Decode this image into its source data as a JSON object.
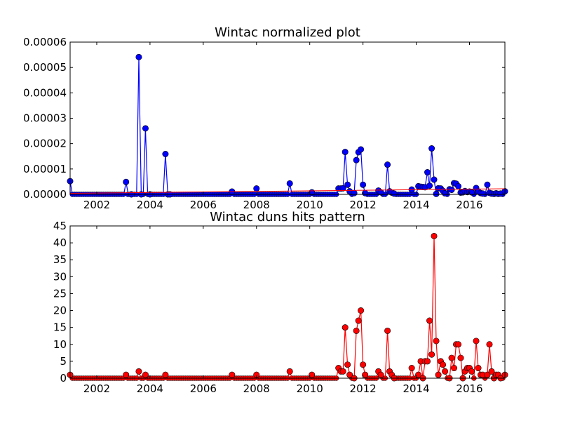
{
  "chart_data": [
    {
      "type": "line",
      "title": "Wintac normalized plot",
      "xlabel": "",
      "ylabel": "",
      "xlim": [
        2001.0,
        2017.33
      ],
      "ylim": [
        0,
        6e-05
      ],
      "xticks": [
        2002,
        2004,
        2006,
        2008,
        2010,
        2012,
        2014,
        2016
      ],
      "yticks": [
        "0.00000",
        "0.00001",
        "0.00002",
        "0.00003",
        "0.00004",
        "0.00005",
        "0.00006"
      ],
      "grid": false,
      "legend": "none",
      "colors": {
        "series": "#0000ff",
        "trend": "#ff0000"
      },
      "series": [
        {
          "x": [
            2001.0,
            2003.1,
            2003.3,
            2003.58,
            2003.67,
            2003.83,
            2004.0,
            2004.58,
            2004.67,
            2004.75,
            2007.08,
            2008.0,
            2009.25,
            2010.08,
            2011.08,
            2011.17,
            2011.25,
            2011.33,
            2011.42,
            2011.5,
            2011.67,
            2011.75,
            2011.83,
            2011.92,
            2012.0,
            2012.08,
            2012.58,
            2012.67,
            2012.92,
            2013.0,
            2013.08,
            2013.17,
            2013.83,
            2014.08,
            2014.17,
            2014.25,
            2014.33,
            2014.42,
            2014.5,
            2014.58,
            2014.67,
            2014.75,
            2014.83,
            2014.92,
            2015.0,
            2015.08,
            2015.25,
            2015.33,
            2015.42,
            2015.5,
            2015.58,
            2015.67,
            2015.75,
            2015.83,
            2015.92,
            2016.0,
            2016.08,
            2016.25,
            2016.33,
            2016.42,
            2016.5,
            2016.67,
            2016.75,
            2016.83,
            2016.92,
            2017.0,
            2017.08,
            2017.17,
            2017.33
          ],
          "y": [
            5.2e-06,
            4.9e-06,
            0.0,
            5.41e-05,
            0.0,
            2.6e-05,
            0.0,
            1.59e-05,
            0.0,
            0.0,
            1.1e-06,
            2.3e-06,
            4.3e-06,
            8e-07,
            2.3e-06,
            2.3e-06,
            2.4e-06,
            1.67e-05,
            3.8e-06,
            1.2e-06,
            5e-07,
            1.35e-05,
            1.66e-05,
            1.77e-05,
            3.8e-06,
            5e-07,
            1.5e-06,
            8e-07,
            1.17e-05,
            1.2e-06,
            7e-07,
            3e-07,
            1.9e-06,
            3.2e-06,
            3e-06,
            2.9e-06,
            2.8e-06,
            8.7e-06,
            3.4e-06,
            1.81e-05,
            5.8e-06,
            2e-07,
            2.4e-06,
            2.3e-06,
            1.4e-06,
            4e-07,
            2e-06,
            1.8e-06,
            4.4e-06,
            4.2e-06,
            3.2e-06,
            7e-07,
            8e-07,
            1.3e-06,
            9e-07,
            1.1e-06,
            8e-07,
            2.5e-06,
            1.1e-06,
            5e-07,
            3e-07,
            3.8e-06,
            6e-07,
            3e-07,
            2e-07,
            4e-07,
            2e-07,
            3e-07,
            1.2e-06
          ]
        },
        {
          "type": "trend",
          "x": [
            2001.0,
            2017.33
          ],
          "y": [
            4e-07,
            2.2e-06
          ]
        }
      ]
    },
    {
      "type": "line",
      "title": "Wintac duns hits pattern",
      "xlabel": "",
      "ylabel": "",
      "xlim": [
        2001.0,
        2017.33
      ],
      "ylim": [
        0,
        45
      ],
      "xticks": [
        2002,
        2004,
        2006,
        2008,
        2010,
        2012,
        2014,
        2016
      ],
      "yticks": [
        "0",
        "5",
        "10",
        "15",
        "20",
        "25",
        "30",
        "35",
        "40",
        "45"
      ],
      "grid": false,
      "legend": "none",
      "colors": {
        "series": "#ff0000"
      },
      "series": [
        {
          "x": [
            2001.0,
            2003.1,
            2003.58,
            2003.83,
            2004.58,
            2007.08,
            2008.0,
            2009.25,
            2010.08,
            2011.08,
            2011.17,
            2011.25,
            2011.33,
            2011.42,
            2011.5,
            2011.67,
            2011.75,
            2011.83,
            2011.92,
            2012.0,
            2012.08,
            2012.58,
            2012.67,
            2012.92,
            2013.0,
            2013.08,
            2013.17,
            2013.83,
            2014.08,
            2014.17,
            2014.25,
            2014.33,
            2014.42,
            2014.5,
            2014.58,
            2014.67,
            2014.75,
            2014.83,
            2014.92,
            2015.0,
            2015.08,
            2015.25,
            2015.33,
            2015.42,
            2015.5,
            2015.58,
            2015.67,
            2015.75,
            2015.83,
            2015.92,
            2016.0,
            2016.08,
            2016.25,
            2016.33,
            2016.42,
            2016.5,
            2016.67,
            2016.75,
            2016.83,
            2016.92,
            2017.0,
            2017.08,
            2017.17,
            2017.33
          ],
          "y": [
            1,
            1,
            2,
            1,
            1,
            1,
            1,
            2,
            1,
            3,
            2,
            2,
            15,
            4,
            1,
            0,
            14,
            17,
            20,
            4,
            1,
            2,
            1,
            14,
            2,
            1,
            0,
            3,
            1,
            5,
            0,
            5,
            5,
            17,
            7,
            42,
            11,
            1,
            5,
            4,
            2,
            0,
            6,
            3,
            10,
            10,
            6,
            0,
            2,
            3,
            3,
            2,
            11,
            3,
            1,
            1,
            1,
            10,
            2,
            0,
            1,
            1,
            0,
            1
          ]
        }
      ]
    }
  ]
}
